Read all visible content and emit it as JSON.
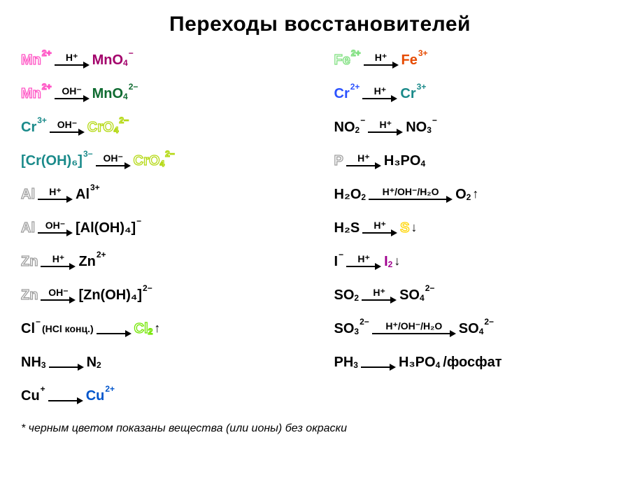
{
  "title": "Переходы восстановителей",
  "footnote": "* черным цветом показаны вещества (или ионы) без окраски",
  "colors": {
    "pink": "#ff52c4",
    "darkmagenta": "#a3006b",
    "darkgreen": "#0f6b31",
    "teal": "#1a8a8a",
    "yellowgreen": "#b5d916",
    "olive": "#8fa300",
    "gray": "#9e9e9e",
    "black": "#000000",
    "limegreen": "#73e600",
    "blue": "#2b52ff",
    "mediumblue": "#0055cc",
    "lightgreen": "#80e080",
    "orangered": "#e64a00",
    "purple": "#a0008f",
    "yellow": "#ffd500"
  },
  "left": [
    {
      "l": {
        "b": "Mn",
        "c": "2+",
        "outline": "pink"
      },
      "cond": "H⁺",
      "r": {
        "b": "MnO",
        "s": "4",
        "c": "−",
        "fill": "darkmagenta"
      }
    },
    {
      "l": {
        "b": "Mn",
        "c": "2+",
        "outline": "pink"
      },
      "cond": "OH⁻",
      "r": {
        "b": "MnO",
        "s": "4",
        "c": "2−",
        "fill": "darkgreen"
      }
    },
    {
      "l": {
        "b": "Cr",
        "c": "3+",
        "fill": "teal"
      },
      "cond": "OH⁻",
      "r": {
        "b": "CrO",
        "s": "4",
        "c": "2−",
        "outline": "yellowgreen"
      }
    },
    {
      "l": {
        "b": "[Cr(OH)₆]",
        "c": "3−",
        "fill": "teal"
      },
      "cond": "OH⁻",
      "r": {
        "b": "CrO",
        "s": "4",
        "c": "2−",
        "outline": "yellowgreen"
      }
    },
    {
      "l": {
        "b": "Al",
        "outline": "gray"
      },
      "cond": "H⁺",
      "r": {
        "b": "Al",
        "c": "3+",
        "fill": "black"
      }
    },
    {
      "l": {
        "b": "Al",
        "outline": "gray"
      },
      "cond": "OH⁻",
      "r": {
        "b": "[Al(OH)₄]",
        "c": "−",
        "fill": "black"
      }
    },
    {
      "l": {
        "b": "Zn",
        "outline": "gray"
      },
      "cond": "H⁺",
      "r": {
        "b": "Zn",
        "c": "2+",
        "fill": "black"
      }
    },
    {
      "l": {
        "b": "Zn",
        "outline": "gray"
      },
      "cond": "OH⁻",
      "r": {
        "b": "[Zn(OH)₄]",
        "c": "2−",
        "fill": "black"
      }
    },
    {
      "l": {
        "b": "Cl",
        "c": "−",
        "fill": "black"
      },
      "note": "(HCl конц.)",
      "cond": "",
      "r": {
        "b": "Cl",
        "s": "2",
        "outline": "limegreen"
      },
      "arrowUp": true
    },
    {
      "l": {
        "b": "NH",
        "s": "3",
        "fill": "black"
      },
      "cond": "",
      "r": {
        "b": "N",
        "s": "2",
        "fill": "black"
      }
    },
    {
      "l": {
        "b": "Cu",
        "c": "+",
        "fill": "black"
      },
      "cond": "",
      "r": {
        "b": "Cu",
        "c": "2+",
        "fill": "mediumblue"
      }
    }
  ],
  "right": [
    {
      "l": {
        "b": "Fe",
        "c": "2+",
        "outline": "lightgreen"
      },
      "cond": "H⁺",
      "r": {
        "b": "Fe",
        "c": "3+",
        "fill": "orangered"
      }
    },
    {
      "l": {
        "b": "Cr",
        "c": "2+",
        "fill": "blue"
      },
      "cond": "H⁺",
      "r": {
        "b": "Cr",
        "c": "3+",
        "fill": "teal"
      }
    },
    {
      "l": {
        "b": "NO",
        "s": "2",
        "c": "−",
        "fill": "black"
      },
      "cond": "H⁺",
      "r": {
        "b": "NO",
        "s": "3",
        "c": "−",
        "fill": "black"
      }
    },
    {
      "l": {
        "b": "P",
        "outline": "gray"
      },
      "cond": "H⁺",
      "r": {
        "b": "H₃PO",
        "s": "4",
        "fill": "black"
      }
    },
    {
      "l": {
        "b": "H₂O",
        "s": "2",
        "fill": "black"
      },
      "cond": "H⁺/OH⁻/H₂O",
      "wide": true,
      "r": {
        "b": "O",
        "s": "2",
        "fill": "black"
      },
      "arrowUp": true
    },
    {
      "l": {
        "b": "H₂S",
        "fill": "black"
      },
      "cond": "H⁺",
      "r": {
        "b": "S",
        "outline": "yellow"
      },
      "arrowDown": true
    },
    {
      "l": {
        "b": "I",
        "c": "−",
        "fill": "black"
      },
      "cond": "H⁺",
      "r": {
        "b": "I",
        "s": "2",
        "fill": "purple"
      },
      "arrowDown": true
    },
    {
      "l": {
        "b": "SO",
        "s": "2",
        "fill": "black"
      },
      "cond": "H⁺",
      "r": {
        "b": "SO",
        "s": "4",
        "c": "2−",
        "fill": "black"
      }
    },
    {
      "l": {
        "b": "SO",
        "s": "3",
        "c": "2−",
        "fill": "black"
      },
      "cond": "H⁺/OH⁻/H₂O",
      "wide": true,
      "r": {
        "b": "SO",
        "s": "4",
        "c": "2−",
        "fill": "black"
      }
    },
    {
      "l": {
        "b": "PH",
        "s": "3",
        "fill": "black"
      },
      "cond": "",
      "r": {
        "b": "H₃PO",
        "s": "4",
        "fill": "black"
      },
      "suffix": " /фосфат"
    }
  ]
}
